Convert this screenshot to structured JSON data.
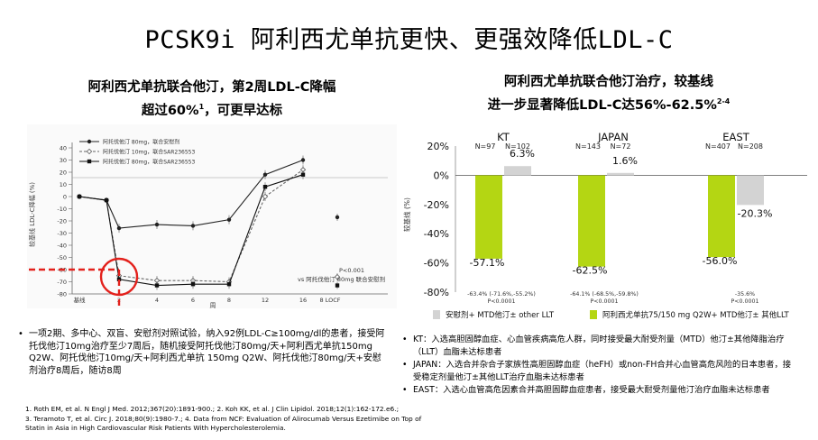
{
  "slide": {
    "title": "PCSK9i 阿利西尤单抗更快、更强效降低LDL-C"
  },
  "left_panel": {
    "title_line1": "阿利西尤单抗联合他汀，第2周LDL-C降幅",
    "title_line2": "超过60%",
    "title_sup": "1",
    "title_line2_end": "，可更早达标",
    "bullet": "一项2期、多中心、双盲、安慰剂对照试验，纳入92例LDL-C≥100mg/dl的患者，接受阿托伐他汀10mg治疗至少7周后，随机接受阿托伐他汀80mg/天+阿利西尤单抗150mg Q2W、阿托伐他汀10mg/天+阿利西尤单抗 150mg Q2W、阿托伐他汀80mg/天+安慰剂治疗8周后，随访8周"
  },
  "right_panel": {
    "title_line1": "阿利西尤单抗联合他汀治疗，较基线",
    "title_line2": "进一步显著降低LDL-C达56%-62.5%",
    "title_sup": "2-4",
    "bullets": [
      "KT：入选高胆固醇血症、心血管疾病高危人群，同时接受最大耐受剂量（MTD）他汀±其他降脂治疗（LLT）血脂未达标患者",
      "JAPAN：入选合并杂合子家族性高胆固醇血症（heFH）或non-FH合并心血管高危风险的日本患者，接受稳定剂量他汀±其他LLT治疗血脂未达标患者",
      "EAST：入选心血管高危因素合并高胆固醇血症患者，接受最大耐受剂量他汀治疗血脂未达标患者"
    ]
  },
  "references": {
    "line1": "1. Roth EM, et al. N Engl J Med. 2012;367(20):1891-900.; 2. Koh KK, et al. J Clin Lipidol. 2018;12(1):162-172.e6.;",
    "line2": "3. Teramoto T, et al. Circ J. 2018;80(9):1980-7.; 4. Data from NCF: Evaluation of Alirocumab Versus Ezetimibe on Top of",
    "line3": "Statin in Asia in High Cardiovascular Risk Patients With Hypercholesterolemia."
  },
  "colors": {
    "alirocumab": "#b4d613",
    "placebo": "#d3d3d3",
    "highlight": "#e3211c"
  },
  "chart_data": [
    {
      "type": "line",
      "ylabel": "较基线 LDL-C降幅 (%)",
      "xlabel": "周",
      "x_ticks": [
        "基线",
        "2",
        "4",
        "6",
        "8",
        "12",
        "16",
        "8 LOCF"
      ],
      "y_ticks": [
        40,
        30,
        20,
        10,
        0,
        -10,
        -20,
        -30,
        -40,
        -50,
        -60,
        -70,
        -80
      ],
      "ylim": [
        -80,
        40
      ],
      "highlight": {
        "x": 2,
        "y": -60
      },
      "series": [
        {
          "name": "阿托伐他汀 80mg，联合安慰剂",
          "marker": "circle",
          "x": [
            0,
            1,
            2,
            4,
            6,
            8,
            12,
            14
          ],
          "y": [
            0,
            -3,
            -26,
            -23,
            -24,
            -19,
            18,
            30
          ]
        },
        {
          "name": "阿托伐他汀 10mg，联合SAR236553",
          "marker": "diamond",
          "x": [
            0,
            1,
            2,
            4,
            6,
            8,
            12,
            14
          ],
          "y": [
            0,
            -3,
            -65,
            -69,
            -69,
            -70,
            0,
            22
          ]
        },
        {
          "name": "阿托伐他汀 80mg，联合SAR236553",
          "marker": "square",
          "x": [
            0,
            1,
            2,
            4,
            6,
            8,
            12,
            14
          ],
          "y": [
            0,
            -3,
            -68,
            -73,
            -72,
            -72,
            8,
            18
          ]
        }
      ],
      "locf": [
        {
          "series": "阿托伐他汀 80mg，联合安慰剂",
          "value": -17
        },
        {
          "series": "阿托伐他汀 10mg，联合SAR236553",
          "value": -66
        },
        {
          "series": "阿托伐他汀 80mg，联合SAR236553",
          "value": -73
        }
      ],
      "annotations": [
        "P<0.001",
        "vs 阿托伐他汀 80mg 联合安慰剂"
      ]
    },
    {
      "type": "bar",
      "ylabel": "较基线 (%)",
      "ylim": [
        -80,
        20
      ],
      "y_ticks": [
        "20%",
        "0%",
        "-20%",
        "-40%",
        "-60%",
        "-80%"
      ],
      "categories": [
        "KT",
        "JAPAN",
        "EAST"
      ],
      "series": [
        {
          "name": "阿利西尤单抗75/150 mg Q2W+ MTD他汀± 其他LLT",
          "values": [
            -57.1,
            -62.5,
            -56.0
          ],
          "labels": [
            "-57.1%",
            "-62.5%",
            "-56.0%"
          ],
          "n_labels": [
            "N=97",
            "N=143",
            "N=407"
          ]
        },
        {
          "name": "安慰剂+ MTD他汀± other LLT",
          "values": [
            6.3,
            1.6,
            -20.3
          ],
          "labels": [
            "6.3%",
            "1.6%",
            "-20.3%"
          ],
          "n_labels": [
            "N=102",
            "N=72",
            "N=208"
          ]
        }
      ],
      "diff_labels": [
        {
          "ci": "-63.4% (-71.6%,-55.2%)",
          "p": "P<0.0001"
        },
        {
          "ci": "-64.1% (-68.5%,-59.8%)",
          "p": "P<0.0001"
        },
        {
          "ci": "-35.6%",
          "p": "P<0.0001"
        }
      ]
    }
  ]
}
